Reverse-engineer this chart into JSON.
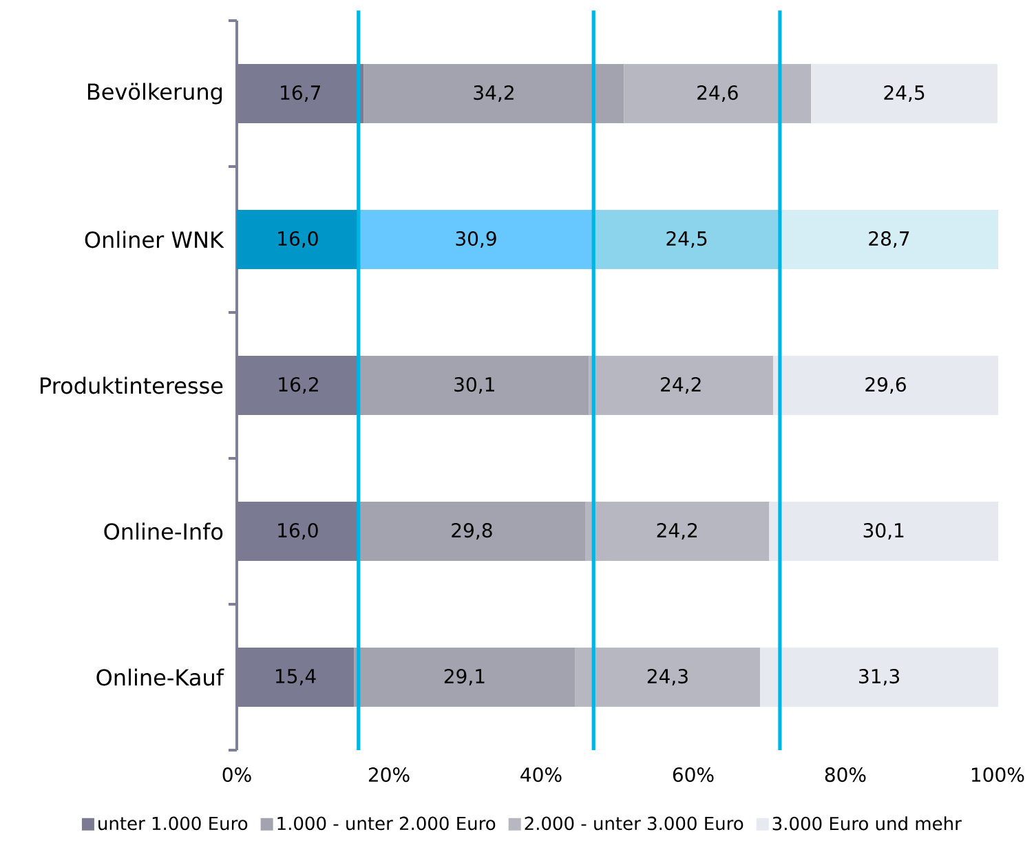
{
  "chart_data": {
    "type": "bar",
    "orientation": "horizontal",
    "stacked": true,
    "categories": [
      "Bevölkerung",
      "Onliner WNK",
      "Produktinteresse",
      "Online-Info",
      "Online-Kauf"
    ],
    "series": [
      {
        "name": "unter 1.000 Euro",
        "color": "#7a7a92",
        "colors": [
          "#7a7a92",
          "#0096c8",
          "#7a7a92",
          "#7a7a92",
          "#7a7a92"
        ],
        "values": [
          16.7,
          16.0,
          16.2,
          16.0,
          15.4
        ],
        "value_labels": [
          "16,7",
          "16,0",
          "16,2",
          "16,0",
          "15,4"
        ]
      },
      {
        "name": "1.000 - unter 2.000 Euro",
        "color": "#a3a3b0",
        "colors": [
          "#a3a3b0",
          "#66c8fe",
          "#a3a3b0",
          "#a3a3b0",
          "#a3a3b0"
        ],
        "values": [
          34.2,
          30.9,
          30.1,
          29.8,
          29.1
        ],
        "value_labels": [
          "34,2",
          "30,9",
          "30,1",
          "29,8",
          "29,1"
        ]
      },
      {
        "name": "2.000 - unter 3.000 Euro",
        "color": "#b7b7c1",
        "colors": [
          "#b7b7c1",
          "#8bd4eb",
          "#b7b7c1",
          "#b7b7c1",
          "#b7b7c1"
        ],
        "values": [
          24.6,
          24.5,
          24.2,
          24.2,
          24.3
        ],
        "value_labels": [
          "24,6",
          "24,5",
          "24,2",
          "24,2",
          "24,3"
        ]
      },
      {
        "name": "3.000 Euro und mehr",
        "color": "#e7e9f1",
        "colors": [
          "#e7e9f1",
          "#d5edf5",
          "#e7e9f1",
          "#e7e9f1",
          "#e7e9f1"
        ],
        "values": [
          24.5,
          28.7,
          29.6,
          30.1,
          31.3
        ],
        "value_labels": [
          "24,5",
          "28,7",
          "29,6",
          "30,1",
          "31,3"
        ]
      }
    ],
    "xlim": [
      0,
      100.1
    ],
    "xticks": [
      {
        "value": 0,
        "label": "0%"
      },
      {
        "value": 20,
        "label": "20%"
      },
      {
        "value": 40,
        "label": "40%"
      },
      {
        "value": 60,
        "label": "60%"
      },
      {
        "value": 80,
        "label": "80%"
      },
      {
        "value": 100,
        "label": "100%"
      }
    ],
    "ref_lines": [
      {
        "axis": "x",
        "value": 16.0,
        "color": "#00b4e4"
      },
      {
        "axis": "x",
        "value": 46.9,
        "color": "#00b4e4"
      },
      {
        "axis": "x",
        "value": 71.4,
        "color": "#00b4e4"
      }
    ],
    "legend": "bottom"
  }
}
